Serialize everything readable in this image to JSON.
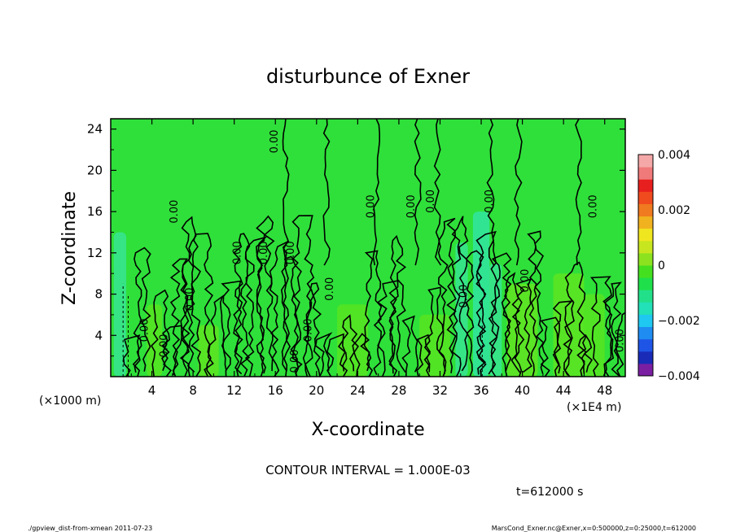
{
  "chart_data": {
    "type": "heatmap",
    "title": "disturbunce of Exner",
    "xlabel": "X-coordinate",
    "ylabel": "Z-coordinate",
    "x_unit_left": "(×1000 m)",
    "x_unit_right": "(×1E4 m)",
    "xlim": [
      0,
      50
    ],
    "ylim": [
      0,
      25
    ],
    "xticks": [
      4,
      8,
      12,
      16,
      20,
      24,
      28,
      32,
      36,
      40,
      44,
      48
    ],
    "yticks": [
      4,
      8,
      12,
      16,
      20,
      24
    ],
    "colorbar": {
      "min": -0.004,
      "max": 0.004,
      "ticks": [
        0.004,
        0.002,
        0,
        -0.002,
        -0.004
      ],
      "tick_labels": [
        "0.004",
        "0.002",
        "0",
        "−0.002",
        "−0.004"
      ],
      "colors": [
        "#7b1fa2",
        "#1a2bb8",
        "#1f55e6",
        "#1f8cf2",
        "#1fc8f0",
        "#22e0b8",
        "#22e08a",
        "#1fe04a",
        "#44e01f",
        "#8ce21f",
        "#c8e61f",
        "#f0e61f",
        "#f0b21f",
        "#f07a1f",
        "#f04a1f",
        "#e81f1f",
        "#f07a7a",
        "#f5a8a8"
      ]
    },
    "contour_interval_text": "CONTOUR INTERVAL = 1.000E-03",
    "contour_labels": [
      {
        "x": 16.2,
        "y": 22.8,
        "text": "0.00"
      },
      {
        "x": 6.5,
        "y": 16.0,
        "text": "0.00"
      },
      {
        "x": 12.6,
        "y": 12.0,
        "text": "0.00"
      },
      {
        "x": 15.2,
        "y": 12.0,
        "text": "0.00"
      },
      {
        "x": 17.8,
        "y": 12.0,
        "text": "0.00"
      },
      {
        "x": 25.6,
        "y": 16.5,
        "text": "0.00"
      },
      {
        "x": 29.5,
        "y": 16.5,
        "text": "0.00"
      },
      {
        "x": 31.4,
        "y": 17.0,
        "text": "0.00"
      },
      {
        "x": 37.1,
        "y": 17.0,
        "text": "0.00"
      },
      {
        "x": 47.2,
        "y": 16.5,
        "text": "0.00"
      },
      {
        "x": 8.0,
        "y": 7.5,
        "text": "0.00"
      },
      {
        "x": 21.6,
        "y": 8.5,
        "text": "0.00"
      },
      {
        "x": 40.6,
        "y": 9.3,
        "text": "0.00"
      },
      {
        "x": 34.6,
        "y": 7.8,
        "text": "0.00"
      },
      {
        "x": 3.6,
        "y": 4.5,
        "text": "0.00"
      },
      {
        "x": 5.5,
        "y": 3.0,
        "text": "0.00"
      },
      {
        "x": 19.5,
        "y": 4.5,
        "text": "0.00"
      },
      {
        "x": 18.2,
        "y": 1.5,
        "text": "0.00"
      },
      {
        "x": 49.8,
        "y": 3.5,
        "text": "0.00"
      }
    ]
  },
  "time_label": "t=612000 s",
  "footer_left": "./gpview_dist-from-xmean   2011-07-23",
  "footer_right": "MarsCond_Exner.nc@Exner,x=0:500000,z=0:25000,t=612000"
}
